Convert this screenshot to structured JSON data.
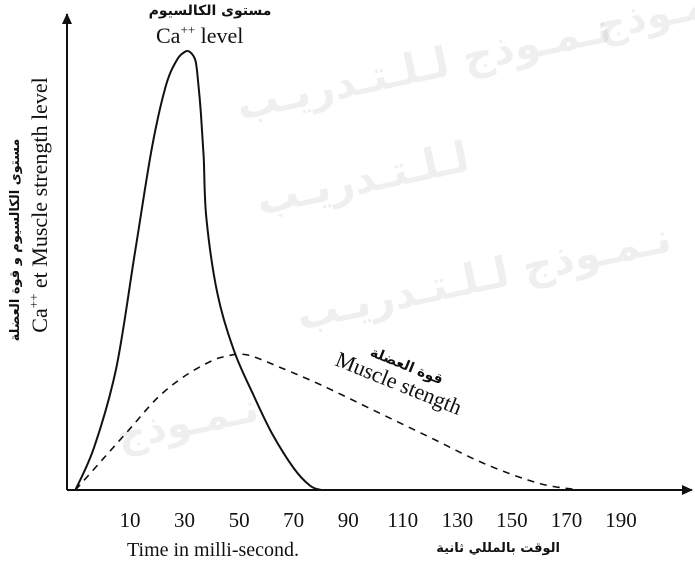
{
  "watermark": {
    "lines": [
      "نـمـوذج",
      "نـمـوذج لـلـتـدريـب",
      "لـلـتـدريـب"
    ]
  },
  "chart_data": {
    "type": "line",
    "x_ticks": [
      10,
      30,
      50,
      70,
      90,
      110,
      130,
      150,
      170,
      190
    ],
    "xlim": [
      -10,
      205
    ],
    "ylim": [
      0,
      100
    ],
    "xlabel_en": "Time in milli-second.",
    "xlabel_ar": "الوقت بالمللي ثانية",
    "ylabel_en_main": "Ca",
    "ylabel_en_sup": "++",
    "ylabel_en_rest": " et Muscle strength level",
    "ylabel_ar": "مستوى الكالسيوم و قوة العضلة",
    "series": [
      {
        "name": "Ca++ level",
        "name_ar": "مستوى الكالسيوم",
        "name_main": "Ca",
        "name_sup": "++",
        "name_rest": " level",
        "style": "solid",
        "x": [
          -10,
          -3,
          5,
          12,
          18,
          23,
          27,
          30,
          32,
          34,
          35,
          36,
          37,
          38,
          42,
          48,
          55,
          62,
          70,
          76,
          80
        ],
        "y": [
          0,
          10,
          28,
          55,
          78,
          92,
          98,
          100,
          100,
          98,
          93,
          86,
          76,
          62,
          45,
          32,
          22,
          13,
          5,
          1,
          0
        ]
      },
      {
        "name": "Muscle stength",
        "name_ar": "قوة العضلة",
        "style": "dashed",
        "x": [
          -10,
          0,
          10,
          20,
          30,
          40,
          45,
          50,
          55,
          65,
          80,
          100,
          120,
          140,
          160,
          175
        ],
        "y": [
          0,
          7,
          14,
          21,
          26,
          29.5,
          30.5,
          31,
          30.5,
          28,
          24,
          18,
          12,
          6,
          1.5,
          0
        ]
      }
    ]
  }
}
